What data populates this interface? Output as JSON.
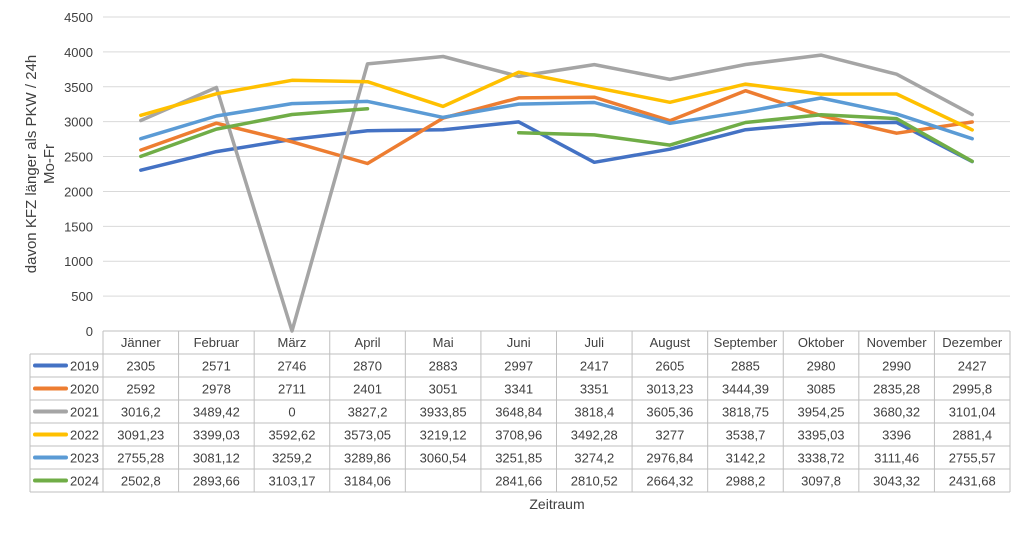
{
  "chart_data": {
    "type": "line",
    "ylabel": "davon KFZ länger als PKW / 24h Mo-Fr",
    "xlabel": "Zeitraum",
    "ylim": [
      0,
      4500
    ],
    "yticks": [
      0,
      500,
      1000,
      1500,
      2000,
      2500,
      3000,
      3500,
      4000,
      4500
    ],
    "grid": true,
    "legend": "data table",
    "categories": [
      "Jänner",
      "Februar",
      "März",
      "April",
      "Mai",
      "Juni",
      "Juli",
      "August",
      "September",
      "Oktober",
      "November",
      "Dezember"
    ],
    "series": [
      {
        "name": "2019",
        "color": "#4472C4",
        "values": [
          2305,
          2571,
          2746,
          2870,
          2883,
          2997,
          2417,
          2605,
          2885,
          2980,
          2990,
          2427
        ],
        "labels": [
          "2305",
          "2571",
          "2746",
          "2870",
          "2883",
          "2997",
          "2417",
          "2605",
          "2885",
          "2980",
          "2990",
          "2427"
        ]
      },
      {
        "name": "2020",
        "color": "#ED7D31",
        "values": [
          2592,
          2978,
          2711,
          2401,
          3051,
          3341,
          3351,
          3013.23,
          3444.39,
          3085,
          2835.28,
          2995.8
        ],
        "labels": [
          "2592",
          "2978",
          "2711",
          "2401",
          "3051",
          "3341",
          "3351",
          "3013,23",
          "3444,39",
          "3085",
          "2835,28",
          "2995,8"
        ]
      },
      {
        "name": "2021",
        "color": "#A5A5A5",
        "values": [
          3016.2,
          3489.42,
          0,
          3827.2,
          3933.85,
          3648.84,
          3818.4,
          3605.36,
          3818.75,
          3954.25,
          3680.32,
          3101.04
        ],
        "labels": [
          "3016,2",
          "3489,42",
          "0",
          "3827,2",
          "3933,85",
          "3648,84",
          "3818,4",
          "3605,36",
          "3818,75",
          "3954,25",
          "3680,32",
          "3101,04"
        ]
      },
      {
        "name": "2022",
        "color": "#FFC000",
        "values": [
          3091.23,
          3399.03,
          3592.62,
          3573.05,
          3219.12,
          3708.96,
          3492.28,
          3277,
          3538.7,
          3395.03,
          3396,
          2881.4
        ],
        "labels": [
          "3091,23",
          "3399,03",
          "3592,62",
          "3573,05",
          "3219,12",
          "3708,96",
          "3492,28",
          "3277",
          "3538,7",
          "3395,03",
          "3396",
          "2881,4"
        ]
      },
      {
        "name": "2023",
        "color": "#5B9BD5",
        "values": [
          2755.28,
          3081.12,
          3259.2,
          3289.86,
          3060.54,
          3251.85,
          3274.2,
          2976.84,
          3142.2,
          3338.72,
          3111.46,
          2755.57
        ],
        "labels": [
          "2755,28",
          "3081,12",
          "3259,2",
          "3289,86",
          "3060,54",
          "3251,85",
          "3274,2",
          "2976,84",
          "3142,2",
          "3338,72",
          "3111,46",
          "2755,57"
        ]
      },
      {
        "name": "2024",
        "color": "#70AD47",
        "values": [
          2502.8,
          2893.66,
          3103.17,
          3184.06,
          null,
          2841.66,
          2810.52,
          2664.32,
          2988.2,
          3097.8,
          3043.32,
          2431.68
        ],
        "labels": [
          "2502,8",
          "2893,66",
          "3103,17",
          "3184,06",
          "",
          "2841,66",
          "2810,52",
          "2664,32",
          "2988,2",
          "3097,8",
          "3043,32",
          "2431,68"
        ]
      }
    ]
  }
}
